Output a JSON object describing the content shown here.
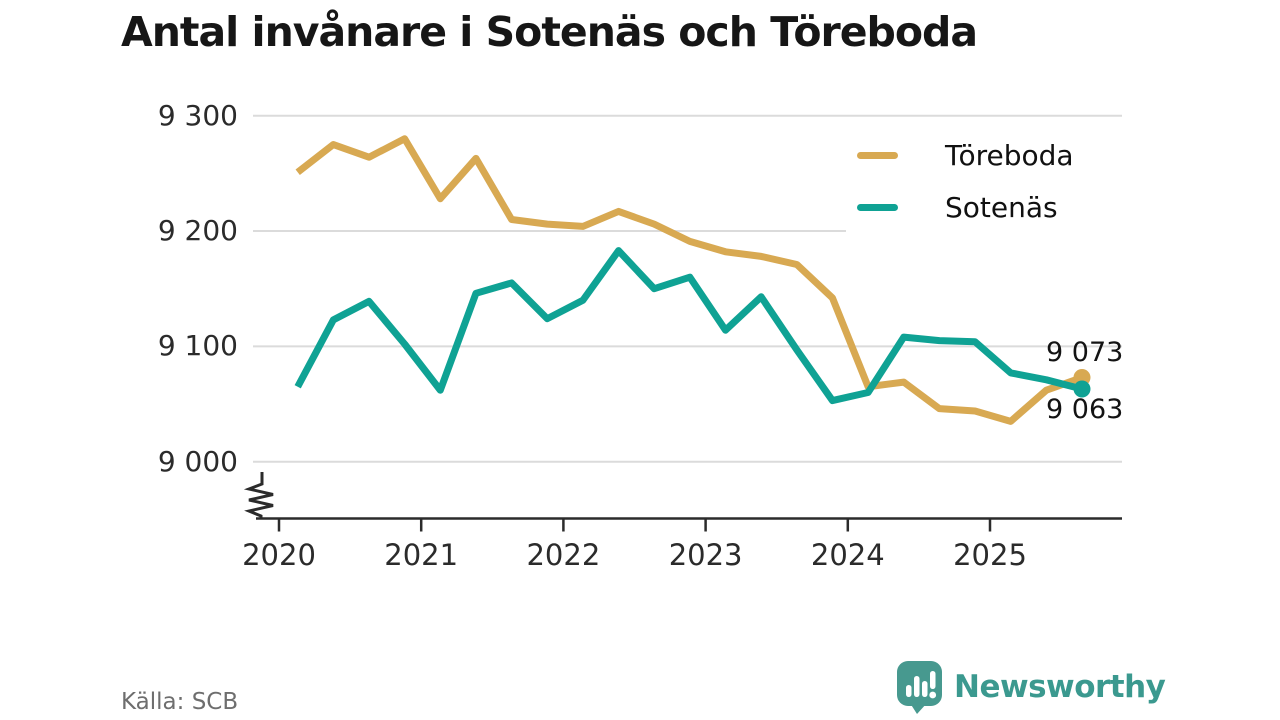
{
  "title": "Antal invånare i Sotenäs och Töreboda",
  "source": "Källa: SCB",
  "branding": {
    "logo_text": "Newsworthy",
    "logo_icon": "bar-chart-speech-bubble-icon",
    "logo_color": "#47998f"
  },
  "colors": {
    "toreboda": "#d8a952",
    "sotenas": "#0fa294",
    "grid": "#dbdbdb",
    "axis": "#2b2b2b",
    "tick_text": "#2b2b2b",
    "title_text": "#161616",
    "source_text": "#6e6e6e",
    "background": "#ffffff"
  },
  "chart_data": {
    "type": "line",
    "title": "Antal invånare i Sotenäs och Töreboda",
    "xlabel": "",
    "ylabel": "",
    "x_frequency": "quarterly",
    "x_range": [
      "2020 Q1",
      "2025 Q3"
    ],
    "x_ticks": [
      {
        "label": "2020"
      },
      {
        "label": "2021"
      },
      {
        "label": "2022"
      },
      {
        "label": "2023"
      },
      {
        "label": "2024"
      },
      {
        "label": "2025"
      }
    ],
    "y_ticks": [
      {
        "value": 9300,
        "label": "9 300"
      },
      {
        "value": 9200,
        "label": "9 200"
      },
      {
        "value": 9100,
        "label": "9 100"
      },
      {
        "value": 9000,
        "label": "9 000"
      }
    ],
    "ylim": [
      9000,
      9300
    ],
    "y_axis_break": true,
    "grid": "horizontal",
    "legend_position": "top-right",
    "series": [
      {
        "name": "Töreboda",
        "color": "#d8a952",
        "end_dot": true,
        "values": [
          9251,
          9275,
          9264,
          9280,
          9228,
          9263,
          9210,
          9206,
          9204,
          9217,
          9206,
          9191,
          9182,
          9178,
          9171,
          9142,
          9065,
          9069,
          9046,
          9044,
          9035,
          9062,
          9073
        ]
      },
      {
        "name": "Sotenäs",
        "color": "#0fa294",
        "end_dot": true,
        "values": [
          9065,
          9123,
          9139,
          9102,
          9062,
          9146,
          9155,
          9124,
          9140,
          9183,
          9150,
          9160,
          9114,
          9143,
          9097,
          9053,
          9060,
          9108,
          9105,
          9104,
          9077,
          9071,
          9063
        ]
      }
    ],
    "end_labels": [
      {
        "series": "Töreboda",
        "value": 9073,
        "label": "9 073"
      },
      {
        "series": "Sotenäs",
        "value": 9063,
        "label": "9 063"
      }
    ]
  }
}
